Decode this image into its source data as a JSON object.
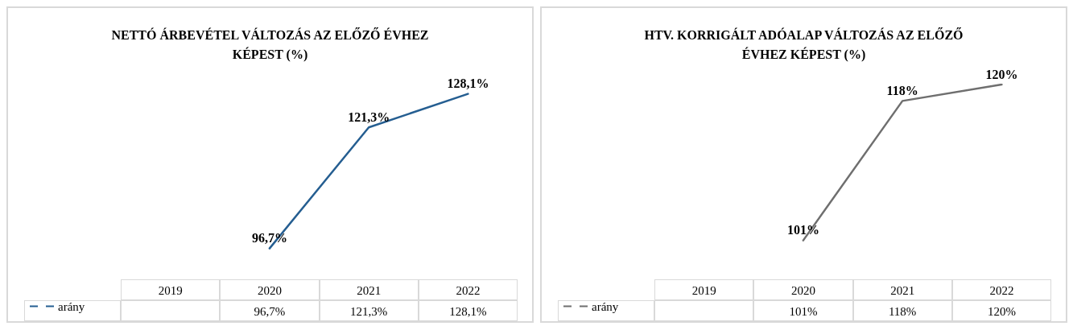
{
  "chart_data": [
    {
      "type": "line",
      "title": "NETTÓ ÁRBEVÉTEL VÁLTOZÁS AZ ELŐZŐ ÉVHEZ KÉPEST (%)",
      "categories": [
        "2019",
        "2020",
        "2021",
        "2022"
      ],
      "series": [
        {
          "name": "arány",
          "color": "#255e91",
          "values": [
            null,
            96.7,
            121.3,
            128.1
          ],
          "value_labels": [
            null,
            "96,7%",
            "121,3%",
            "128,1%"
          ]
        }
      ],
      "legend": "bottom",
      "marker": "none",
      "line_style": "solid"
    },
    {
      "type": "line",
      "title": "HTV. KORRIGÁLT ADÓALAP  VÁLTOZÁS AZ ELŐZŐ ÉVHEZ KÉPEST (%)",
      "categories": [
        "2019",
        "2020",
        "2021",
        "2022"
      ],
      "series": [
        {
          "name": "arány",
          "color": "#6f6f6f",
          "values": [
            null,
            101,
            118,
            120
          ],
          "value_labels": [
            null,
            "101%",
            "118%",
            "120%"
          ]
        }
      ],
      "legend": "bottom",
      "marker": "none",
      "line_style": "solid"
    }
  ]
}
